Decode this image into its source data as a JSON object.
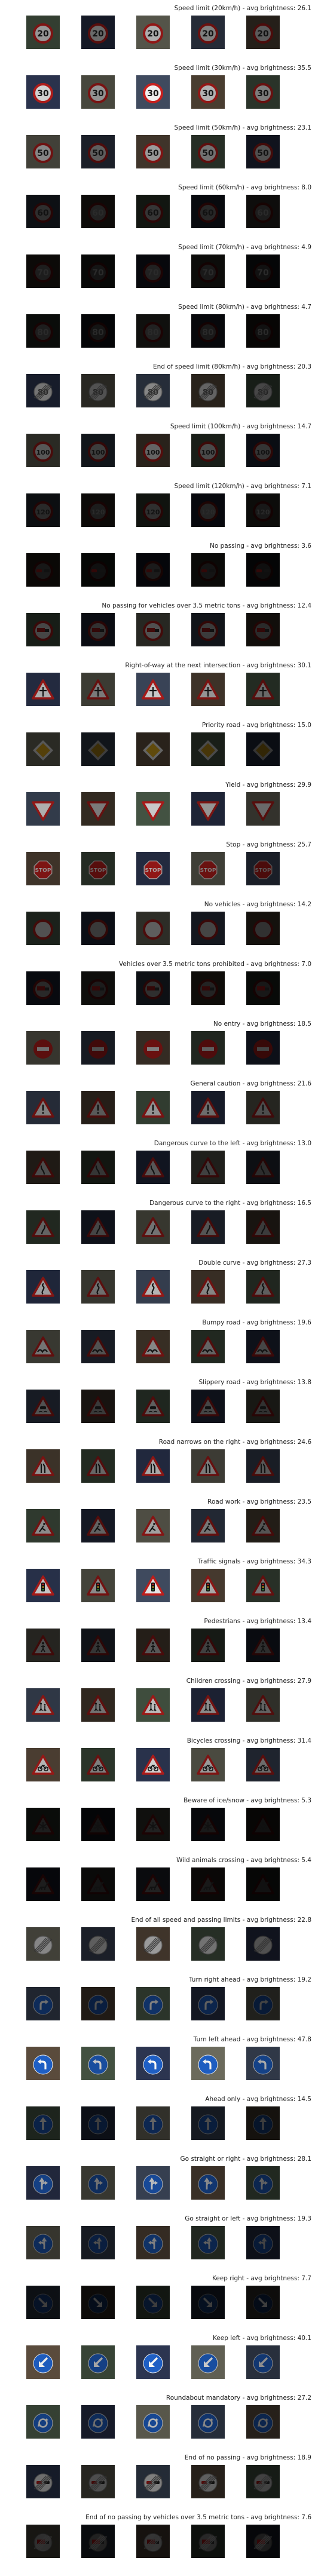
{
  "classes": [
    {
      "title": "Speed limit (20km/h) - avg brightness: 26.1",
      "sign": "speed",
      "glyph": "20",
      "bright": 0.26
    },
    {
      "title": "Speed limit (30km/h) - avg brightness: 35.5",
      "sign": "speed",
      "glyph": "30",
      "bright": 0.36
    },
    {
      "title": "Speed limit (50km/h) - avg brightness: 23.1",
      "sign": "speed",
      "glyph": "50",
      "bright": 0.23
    },
    {
      "title": "Speed limit (60km/h) - avg brightness: 8.0",
      "sign": "speed",
      "glyph": "60",
      "bright": 0.08
    },
    {
      "title": "Speed limit (70km/h) - avg brightness: 4.9",
      "sign": "speed",
      "glyph": "70",
      "bright": 0.05
    },
    {
      "title": "Speed limit (80km/h) - avg brightness: 4.7",
      "sign": "speed",
      "glyph": "80",
      "bright": 0.05
    },
    {
      "title": "End of speed limit (80km/h) - avg brightness: 20.3",
      "sign": "end",
      "glyph": "80",
      "bright": 0.2
    },
    {
      "title": "Speed limit (100km/h) - avg brightness: 14.7",
      "sign": "speed",
      "glyph": "100",
      "bright": 0.15
    },
    {
      "title": "Speed limit (120km/h) - avg brightness: 7.1",
      "sign": "speed",
      "glyph": "120",
      "bright": 0.07
    },
    {
      "title": "No passing - avg brightness: 3.6",
      "sign": "noentry-ring",
      "glyph": "cars",
      "bright": 0.04
    },
    {
      "title": "No passing for vehicles over 3.5 metric tons - avg brightness: 12.4",
      "sign": "noentry-ring",
      "glyph": "truck",
      "bright": 0.12
    },
    {
      "title": "Right-of-way at the next intersection - avg brightness: 30.1",
      "sign": "triangle",
      "glyph": "cross",
      "bright": 0.3
    },
    {
      "title": "Priority road - avg brightness: 15.0",
      "sign": "diamond",
      "glyph": "",
      "bright": 0.15
    },
    {
      "title": "Yield - avg brightness: 29.9",
      "sign": "yield",
      "glyph": "",
      "bright": 0.3
    },
    {
      "title": "Stop - avg brightness: 25.7",
      "sign": "stop",
      "glyph": "STOP",
      "bright": 0.26
    },
    {
      "title": "No vehicles - avg brightness: 14.2",
      "sign": "ring-empty",
      "glyph": "",
      "bright": 0.14
    },
    {
      "title": "Vehicles over 3.5 metric tons prohibited - avg brightness: 7.0",
      "sign": "noentry-ring",
      "glyph": "truck",
      "bright": 0.07
    },
    {
      "title": "No entry - avg brightness: 18.5",
      "sign": "noentry",
      "glyph": "",
      "bright": 0.19
    },
    {
      "title": "General caution - avg brightness: 21.6",
      "sign": "triangle",
      "glyph": "!",
      "bright": 0.22
    },
    {
      "title": "Dangerous curve to the left - avg brightness: 13.0",
      "sign": "triangle",
      "glyph": "curveL",
      "bright": 0.13
    },
    {
      "title": "Dangerous curve to the right - avg brightness: 16.5",
      "sign": "triangle",
      "glyph": "curveR",
      "bright": 0.17
    },
    {
      "title": "Double curve - avg brightness: 27.3",
      "sign": "triangle",
      "glyph": "double",
      "bright": 0.27
    },
    {
      "title": "Bumpy road - avg brightness: 19.6",
      "sign": "triangle",
      "glyph": "bump",
      "bright": 0.2
    },
    {
      "title": "Slippery road - avg brightness: 13.8",
      "sign": "triangle",
      "glyph": "car",
      "bright": 0.14
    },
    {
      "title": "Road narrows on the right - avg brightness: 24.6",
      "sign": "triangle",
      "glyph": "narrow",
      "bright": 0.25
    },
    {
      "title": "Road work - avg brightness: 23.5",
      "sign": "triangle",
      "glyph": "work",
      "bright": 0.24
    },
    {
      "title": "Traffic signals - avg brightness: 34.3",
      "sign": "triangle",
      "glyph": "signals",
      "bright": 0.34
    },
    {
      "title": "Pedestrians - avg brightness: 13.4",
      "sign": "triangle",
      "glyph": "person",
      "bright": 0.13
    },
    {
      "title": "Children crossing - avg brightness: 27.9",
      "sign": "triangle",
      "glyph": "kids",
      "bright": 0.28
    },
    {
      "title": "Bicycles crossing - avg brightness: 31.4",
      "sign": "triangle",
      "glyph": "bike",
      "bright": 0.31
    },
    {
      "title": "Beware of ice/snow - avg brightness: 5.3",
      "sign": "triangle",
      "glyph": "snow",
      "bright": 0.05
    },
    {
      "title": "Wild animals crossing - avg brightness: 5.4",
      "sign": "triangle",
      "glyph": "deer",
      "bright": 0.05
    },
    {
      "title": "End of all speed and passing limits - avg brightness: 22.8",
      "sign": "end",
      "glyph": "",
      "bright": 0.23
    },
    {
      "title": "Turn right ahead - avg brightness: 19.2",
      "sign": "blue",
      "glyph": "turnR",
      "bright": 0.19
    },
    {
      "title": "Turn left ahead - avg brightness: 47.8",
      "sign": "blue",
      "glyph": "turnL",
      "bright": 0.48
    },
    {
      "title": "Ahead only - avg brightness: 14.5",
      "sign": "blue",
      "glyph": "up",
      "bright": 0.15
    },
    {
      "title": "Go straight or right - avg brightness: 28.1",
      "sign": "blue",
      "glyph": "upR",
      "bright": 0.28
    },
    {
      "title": "Go straight or left - avg brightness: 19.3",
      "sign": "blue",
      "glyph": "upL",
      "bright": 0.19
    },
    {
      "title": "Keep right - avg brightness: 7.7",
      "sign": "blue",
      "glyph": "keepR",
      "bright": 0.08
    },
    {
      "title": "Keep left - avg brightness: 40.1",
      "sign": "blue",
      "glyph": "keepL",
      "bright": 0.4
    },
    {
      "title": "Roundabout mandatory - avg brightness: 27.2",
      "sign": "blue",
      "glyph": "round",
      "bright": 0.27
    },
    {
      "title": "End of no passing - avg brightness: 18.9",
      "sign": "end",
      "glyph": "cars",
      "bright": 0.19
    },
    {
      "title": "End of no passing by vehicles over 3.5 metric tons - avg brightness: 7.6",
      "sign": "end",
      "glyph": "truck",
      "bright": 0.08
    }
  ]
}
